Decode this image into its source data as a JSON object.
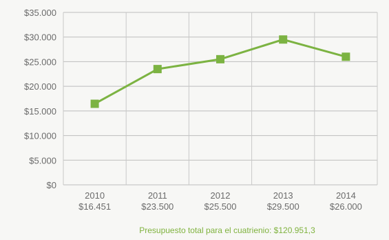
{
  "chart_data": {
    "type": "line",
    "title": "",
    "xlabel": "",
    "ylabel": "",
    "x": [
      "2010",
      "2011",
      "2012",
      "2013",
      "2014"
    ],
    "x_sublabels": [
      "$16.451",
      "$23.500",
      "$25.500",
      "$29.500",
      "$26.000"
    ],
    "y_ticks": [
      "$0",
      "$5.000",
      "$10.000",
      "$15.000",
      "$20.000",
      "$25.000",
      "$30.000",
      "$35.000"
    ],
    "ylim": [
      0,
      35000
    ],
    "grid": true,
    "series": [
      {
        "values": [
          16451,
          23500,
          25500,
          29500,
          26000
        ],
        "color": "#7cb342"
      }
    ],
    "footer": "Presupuesto total para el cuatrienio: $120.951,3"
  }
}
